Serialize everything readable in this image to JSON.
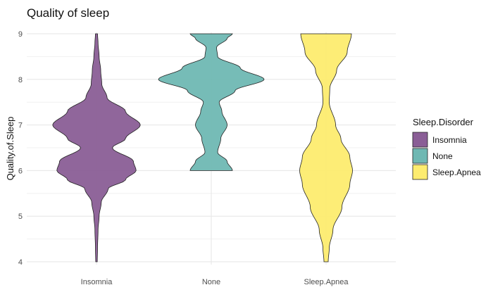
{
  "chart_data": {
    "type": "violin",
    "title": "Quality of sleep",
    "xlabel": "",
    "ylabel": "Quality.of.Sleep",
    "ylim": [
      4,
      9
    ],
    "yticks": [
      4,
      5,
      6,
      7,
      8,
      9
    ],
    "categories": [
      "Insomnia",
      "None",
      "Sleep.Apnea"
    ],
    "grid": true,
    "legend": {
      "title": "Sleep.Disorder",
      "placement": "right",
      "items": [
        "Insomnia",
        "None",
        "Sleep.Apnea"
      ]
    },
    "series": [
      {
        "name": "Insomnia",
        "color": "#8a5e96",
        "range": [
          4,
          9
        ],
        "density_profile": [
          [
            4.0,
            0.015
          ],
          [
            4.3,
            0.02
          ],
          [
            4.7,
            0.03
          ],
          [
            5.0,
            0.05
          ],
          [
            5.3,
            0.09
          ],
          [
            5.6,
            0.22
          ],
          [
            5.8,
            0.55
          ],
          [
            6.0,
            0.75
          ],
          [
            6.2,
            0.7
          ],
          [
            6.5,
            0.3
          ],
          [
            6.7,
            0.55
          ],
          [
            7.0,
            0.83
          ],
          [
            7.3,
            0.55
          ],
          [
            7.6,
            0.2
          ],
          [
            7.9,
            0.1
          ],
          [
            8.2,
            0.08
          ],
          [
            8.5,
            0.05
          ],
          [
            8.8,
            0.03
          ],
          [
            9.0,
            0.02
          ]
        ]
      },
      {
        "name": "None",
        "color": "#6fb8b3",
        "range": [
          6,
          9
        ],
        "density_profile": [
          [
            6.0,
            0.4
          ],
          [
            6.2,
            0.3
          ],
          [
            6.4,
            0.12
          ],
          [
            6.7,
            0.18
          ],
          [
            7.0,
            0.3
          ],
          [
            7.3,
            0.2
          ],
          [
            7.5,
            0.15
          ],
          [
            7.75,
            0.45
          ],
          [
            8.0,
            1.0
          ],
          [
            8.25,
            0.55
          ],
          [
            8.5,
            0.12
          ],
          [
            8.7,
            0.1
          ],
          [
            8.9,
            0.3
          ],
          [
            9.0,
            0.4
          ]
        ]
      },
      {
        "name": "Sleep.Apnea",
        "color": "#fdec6f",
        "range": [
          4,
          9
        ],
        "density_profile": [
          [
            4.0,
            0.04
          ],
          [
            4.3,
            0.06
          ],
          [
            4.7,
            0.13
          ],
          [
            5.2,
            0.3
          ],
          [
            5.7,
            0.45
          ],
          [
            6.0,
            0.5
          ],
          [
            6.3,
            0.45
          ],
          [
            6.7,
            0.28
          ],
          [
            7.0,
            0.18
          ],
          [
            7.5,
            0.06
          ],
          [
            7.8,
            0.07
          ],
          [
            8.2,
            0.2
          ],
          [
            8.6,
            0.4
          ],
          [
            9.0,
            0.48
          ]
        ]
      }
    ]
  }
}
